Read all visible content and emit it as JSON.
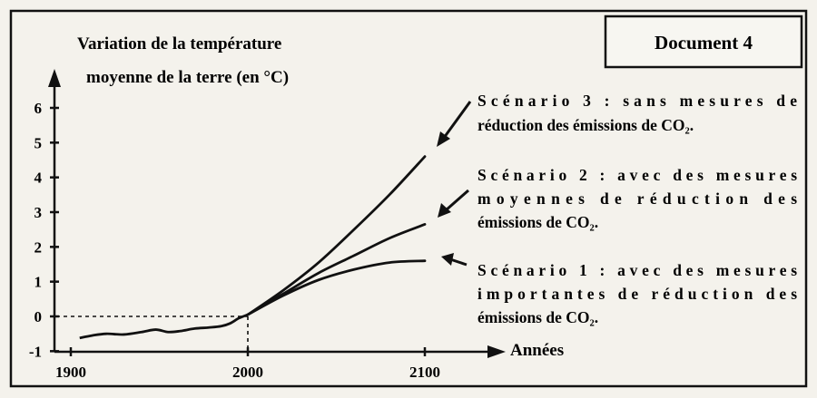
{
  "document_label": "Document 4",
  "chart_data": {
    "type": "line",
    "ylabel_lines": [
      "Variation de la température",
      "moyenne de la terre (en °C)"
    ],
    "xlabel": "Années",
    "x_ticks": [
      1900,
      2000,
      2100
    ],
    "y_ticks": [
      -1,
      0,
      1,
      2,
      3,
      4,
      5,
      6
    ],
    "xlim": [
      1890,
      2135
    ],
    "ylim": [
      -1,
      7
    ],
    "reference_lines": {
      "x": 2000,
      "y": 0,
      "style": "dashed"
    },
    "series": [
      {
        "name": "Scénario 3",
        "label_lines": [
          "Scénario 3 : sans mesures de",
          "réduction des émissions de CO₂."
        ],
        "x": [
          2000,
          2020,
          2040,
          2060,
          2080,
          2100
        ],
        "values": [
          0.05,
          0.75,
          1.55,
          2.5,
          3.5,
          4.6
        ]
      },
      {
        "name": "Scénario 2",
        "label_lines": [
          "Scénario 2 : avec des mesures",
          "moyennes de réduction des",
          "émissions de CO₂."
        ],
        "x": [
          2000,
          2020,
          2040,
          2060,
          2080,
          2100
        ],
        "values": [
          0.05,
          0.65,
          1.25,
          1.75,
          2.25,
          2.65
        ]
      },
      {
        "name": "Scénario 1",
        "label_lines": [
          "Scénario 1 : avec des mesures",
          "importantes de réduction des",
          "émissions de CO₂."
        ],
        "x": [
          2000,
          2020,
          2040,
          2060,
          2080,
          2100
        ],
        "values": [
          0.05,
          0.6,
          1.05,
          1.35,
          1.55,
          1.6
        ]
      }
    ],
    "historical": {
      "x": [
        1905,
        1912,
        1920,
        1930,
        1940,
        1948,
        1955,
        1962,
        1970,
        1978,
        1985,
        1990,
        1995,
        2000
      ],
      "values": [
        -0.62,
        -0.55,
        -0.5,
        -0.52,
        -0.45,
        -0.38,
        -0.45,
        -0.42,
        -0.35,
        -0.32,
        -0.28,
        -0.2,
        -0.05,
        0.05
      ]
    }
  }
}
